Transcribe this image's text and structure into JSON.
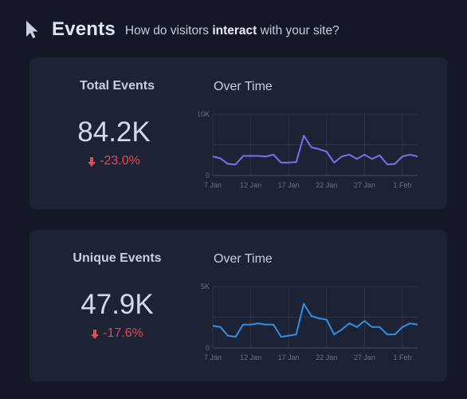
{
  "header": {
    "title": "Events",
    "subtitle_prefix": "How do visitors ",
    "subtitle_bold": "interact",
    "subtitle_suffix": " with your site?",
    "icon": "cursor-icon"
  },
  "cards": [
    {
      "title": "Total Events",
      "value": "84.2K",
      "change": "-23.0%",
      "change_color": "#e04b55",
      "chart_title": "Over Time"
    },
    {
      "title": "Unique Events",
      "value": "47.9K",
      "change": "-17.6%",
      "change_color": "#e04b55",
      "chart_title": "Over Time"
    }
  ],
  "chart_data": [
    {
      "type": "line",
      "color": "#7b6ff0",
      "ylim": [
        0,
        10000
      ],
      "y_ticks": [
        "0",
        "10K"
      ],
      "x_tick_labels": [
        "7 Jan",
        "12 Jan",
        "17 Jan",
        "22 Jan",
        "27 Jan",
        "1 Feb"
      ],
      "x": [
        "7 Jan",
        "8 Jan",
        "9 Jan",
        "10 Jan",
        "11 Jan",
        "12 Jan",
        "13 Jan",
        "14 Jan",
        "15 Jan",
        "16 Jan",
        "17 Jan",
        "18 Jan",
        "19 Jan",
        "20 Jan",
        "21 Jan",
        "22 Jan",
        "23 Jan",
        "24 Jan",
        "25 Jan",
        "26 Jan",
        "27 Jan",
        "28 Jan",
        "29 Jan",
        "30 Jan",
        "31 Jan",
        "1 Feb",
        "2 Feb",
        "3 Feb"
      ],
      "values": [
        3100,
        2800,
        1900,
        1800,
        3200,
        3200,
        3200,
        3100,
        3400,
        2100,
        2100,
        2200,
        6500,
        4600,
        4300,
        3900,
        2100,
        3100,
        3400,
        2700,
        3400,
        2700,
        3300,
        1800,
        1900,
        3100,
        3400,
        3100
      ],
      "grid": true
    },
    {
      "type": "line",
      "color": "#2f8fe6",
      "ylim": [
        0,
        5000
      ],
      "y_ticks": [
        "0",
        "5K"
      ],
      "x_tick_labels": [
        "7 Jan",
        "12 Jan",
        "17 Jan",
        "22 Jan",
        "27 Jan",
        "1 Feb"
      ],
      "x": [
        "7 Jan",
        "8 Jan",
        "9 Jan",
        "10 Jan",
        "11 Jan",
        "12 Jan",
        "13 Jan",
        "14 Jan",
        "15 Jan",
        "16 Jan",
        "17 Jan",
        "18 Jan",
        "19 Jan",
        "20 Jan",
        "21 Jan",
        "22 Jan",
        "23 Jan",
        "24 Jan",
        "25 Jan",
        "26 Jan",
        "27 Jan",
        "28 Jan",
        "29 Jan",
        "30 Jan",
        "31 Jan",
        "1 Feb",
        "2 Feb",
        "3 Feb"
      ],
      "values": [
        1800,
        1700,
        1000,
        900,
        1900,
        1900,
        2000,
        1900,
        1900,
        900,
        1000,
        1100,
        3600,
        2600,
        2400,
        2300,
        1100,
        1500,
        2000,
        1700,
        2200,
        1700,
        1700,
        1100,
        1100,
        1700,
        2000,
        1900
      ],
      "grid": true
    }
  ]
}
